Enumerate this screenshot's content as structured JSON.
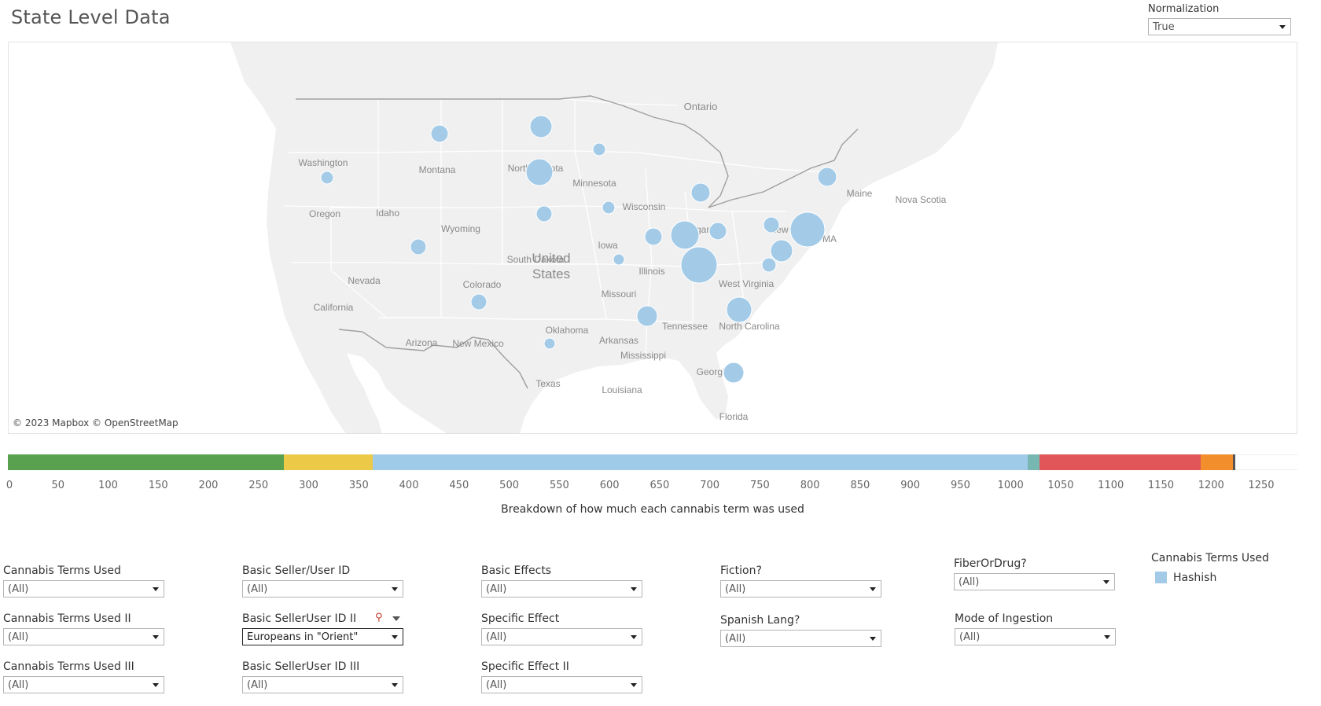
{
  "page": {
    "title": "State Level Data"
  },
  "normalization": {
    "label": "Normalization",
    "value": "True"
  },
  "map": {
    "credit": "© 2023 Mapbox  © OpenStreetMap",
    "background_color": "#f0f0f0",
    "bubble_color": "#a3cbe8",
    "labels": [
      "Ontario",
      "Washington",
      "Montana",
      "North Dakota",
      "Minnesota",
      "Wisconsin",
      "Oregon",
      "Idaho",
      "Wyoming",
      "South Dakota",
      "Michigan",
      "New York",
      "Maine",
      "Nova Scotia",
      "MA",
      "Iowa",
      "United States",
      "Nevada",
      "Colorado",
      "Illinois",
      "West Virginia",
      "Missouri",
      "California",
      "Tennessee",
      "Oklahoma",
      "North Carolina",
      "Arizona",
      "New Mexico",
      "Arkansas",
      "Mississippi",
      "Georgia",
      "Texas",
      "Louisiana",
      "Florida"
    ]
  },
  "strip": {
    "caption": "Breakdown of how much each cannabis term was used",
    "ticks": [
      "0",
      "50",
      "100",
      "150",
      "200",
      "250",
      "300",
      "350",
      "400",
      "450",
      "500",
      "550",
      "600",
      "650",
      "700",
      "750",
      "800",
      "850",
      "900",
      "950",
      "1000",
      "1050",
      "1100",
      "1150",
      "1200",
      "1250"
    ],
    "segments": [
      {
        "start": 0,
        "end": 275,
        "color": "#59a14f"
      },
      {
        "start": 275,
        "end": 364,
        "color": "#edc948"
      },
      {
        "start": 364,
        "end": 1017,
        "color": "#a0cbe8"
      },
      {
        "start": 1017,
        "end": 1029,
        "color": "#76b7b2"
      },
      {
        "start": 1029,
        "end": 1190,
        "color": "#e15759"
      },
      {
        "start": 1190,
        "end": 1222,
        "color": "#f28e2b"
      },
      {
        "start": 1222,
        "end": 1224,
        "color": "#555555"
      }
    ]
  },
  "filters": [
    {
      "label": "Cannabis Terms Used",
      "value": "(All)"
    },
    {
      "label": "Cannabis Terms Used II",
      "value": "(All)"
    },
    {
      "label": "Cannabis Terms Used III",
      "value": "(All)"
    },
    {
      "label": "Basic Seller/User ID",
      "value": "(All)"
    },
    {
      "label": "Basic SellerUser ID II",
      "value": "Europeans in \"Orient\""
    },
    {
      "label": "Basic SellerUser ID III",
      "value": "(All)"
    },
    {
      "label": "Basic Effects",
      "value": "(All)"
    },
    {
      "label": "Specific Effect",
      "value": "(All)"
    },
    {
      "label": "Specific Effect II",
      "value": "(All)"
    },
    {
      "label": "Fiction?",
      "value": "(All)"
    },
    {
      "label": "Spanish Lang?",
      "value": "(All)"
    },
    {
      "label": "FiberOrDrug?",
      "value": "(All)"
    },
    {
      "label": "Mode of Ingestion",
      "value": "(All)"
    }
  ],
  "legend": {
    "title": "Cannabis Terms Used",
    "items": [
      {
        "label": "Hashish",
        "color": "#a3cbe8"
      }
    ]
  }
}
